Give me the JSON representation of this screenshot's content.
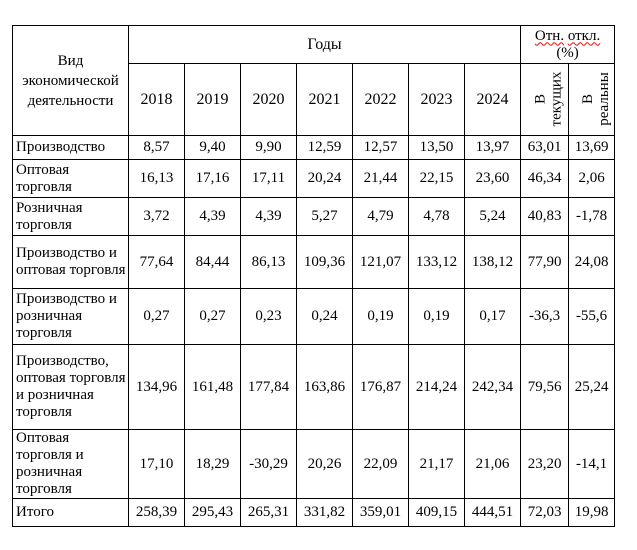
{
  "colors": {
    "spellcheck_underline": "#ff0000",
    "border": "#000000",
    "text": "#000000",
    "page_background": "#ffffff"
  },
  "table": {
    "header": {
      "activity_type": "Вид экономической деятельности",
      "years_group": "Годы",
      "rel_dev": {
        "word1": "Отн.",
        "word2": "откл.",
        "line2": "(%)"
      },
      "years": [
        "2018",
        "2019",
        "2020",
        "2021",
        "2022",
        "2023",
        "2024"
      ],
      "in_current": {
        "line1": "В",
        "line2": "текущих"
      },
      "in_real": {
        "line1": "В",
        "line2": "реальны"
      }
    },
    "rows": [
      {
        "label": "Производство",
        "values": [
          "8,57",
          "9,40",
          "9,90",
          "12,59",
          "12,57",
          "13,50",
          "13,97",
          "63,01",
          "13,69"
        ]
      },
      {
        "label": "Оптовая торговля",
        "values": [
          "16,13",
          "17,16",
          "17,11",
          "20,24",
          "21,44",
          "22,15",
          "23,60",
          "46,34",
          "2,06"
        ]
      },
      {
        "label": "Розничная торговля",
        "values": [
          "3,72",
          "4,39",
          "4,39",
          "5,27",
          "4,79",
          "4,78",
          "5,24",
          "40,83",
          "-1,78"
        ]
      },
      {
        "label": "Производство и оптовая торговля",
        "values": [
          "77,64",
          "84,44",
          "86,13",
          "109,36",
          "121,07",
          "133,12",
          "138,12",
          "77,90",
          "24,08"
        ]
      },
      {
        "label": "Производство и розничная торговля",
        "values": [
          "0,27",
          "0,27",
          "0,23",
          "0,24",
          "0,19",
          "0,19",
          "0,17",
          "-36,3",
          "-55,6"
        ]
      },
      {
        "label": "Производство, оптовая торговля и розничная торговля",
        "values": [
          "134,96",
          "161,48",
          "177,84",
          "163,86",
          "176,87",
          "214,24",
          "242,34",
          "79,56",
          "25,24"
        ]
      },
      {
        "label": "Оптовая торговля и розничная торговля",
        "values": [
          "17,10",
          "18,29",
          "-30,29",
          "20,26",
          "22,09",
          "21,17",
          "21,06",
          "23,20",
          "-14,1"
        ]
      },
      {
        "label": "Итого",
        "values": [
          "258,39",
          "295,43",
          "265,31",
          "331,82",
          "359,01",
          "409,15",
          "444,51",
          "72,03",
          "19,98"
        ]
      }
    ]
  }
}
